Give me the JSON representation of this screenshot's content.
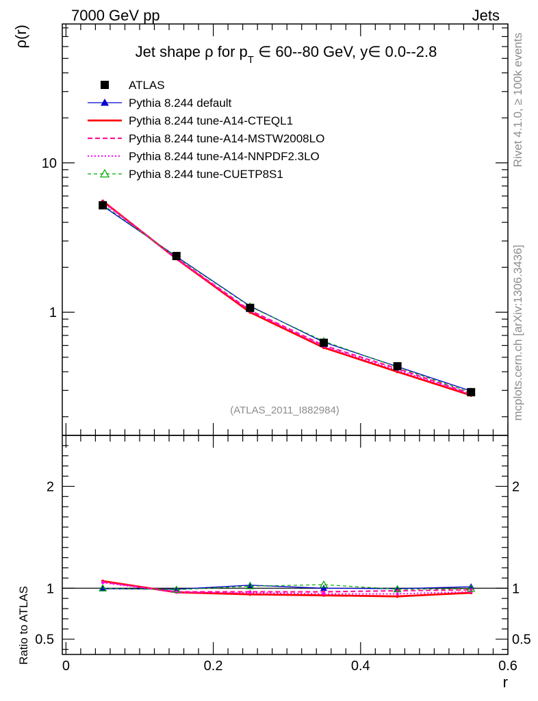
{
  "header": {
    "left": "7000 GeV pp",
    "right": "Jets"
  },
  "side_labels": {
    "rivet": "Rivet 4.1.0, ≥ 100k events",
    "mcplots": "mcplots.cern.ch [arXiv:1306.3436]"
  },
  "chart_data": {
    "type": "line",
    "title": {
      "pre": "Jet shape ρ for p",
      "sub": "T",
      "post": " ∈ 60--80 GeV, y∈ 0.0--2.8"
    },
    "watermark": "(ATLAS_2011_I882984)",
    "xlabel": "r",
    "ylabel_main": "ρ(r)",
    "ylabel_ratio": "Ratio to ATLAS",
    "xlim": [
      -0.005,
      0.6
    ],
    "ylim_main": [
      0.15,
      85
    ],
    "ylim_ratio": [
      0.35,
      2.5
    ],
    "x_ticks": [
      0,
      0.2,
      0.4,
      0.6
    ],
    "x_tick_labels": [
      "0",
      "0.2",
      "0.4",
      "0.6"
    ],
    "main_y_ticks": [
      1,
      10
    ],
    "main_y_tick_labels": [
      "1",
      "10"
    ],
    "ratio_y_ticks": [
      0.5,
      1,
      2
    ],
    "ratio_y_tick_labels": [
      "0.5",
      "1",
      "2"
    ],
    "ratio_y_tick_labels_right": [
      "0.5",
      "1",
      "2"
    ],
    "x": [
      0.05,
      0.15,
      0.25,
      0.35,
      0.45,
      0.55
    ],
    "series": [
      {
        "name": "ATLAS",
        "color": "#000000",
        "style": "data",
        "values": [
          5.2,
          2.38,
          1.07,
          0.625,
          0.435,
          0.292
        ],
        "ratio": [
          1,
          1,
          1,
          1,
          1,
          1
        ]
      },
      {
        "name": "Pythia 8.244 default",
        "color": "#0000cc",
        "style": "solid-triangle",
        "values": [
          5.15,
          2.36,
          1.1,
          0.63,
          0.433,
          0.297
        ],
        "ratio": [
          0.995,
          0.99,
          1.03,
          1.0,
          0.995,
          1.015
        ]
      },
      {
        "name": "Pythia 8.244 tune-A14-CTEQL1",
        "color": "#ff0000",
        "style": "solid-thick",
        "values": [
          5.55,
          2.28,
          1.0,
          0.58,
          0.4,
          0.278
        ],
        "ratio": [
          1.07,
          0.96,
          0.94,
          0.93,
          0.92,
          0.955
        ]
      },
      {
        "name": "Pythia 8.244 tune-A14-MSTW2008LO",
        "color": "#ff1493",
        "style": "dashed",
        "values": [
          5.5,
          2.3,
          1.03,
          0.6,
          0.42,
          0.285
        ],
        "ratio": [
          1.06,
          0.965,
          0.965,
          0.965,
          0.975,
          0.985
        ]
      },
      {
        "name": "Pythia 8.244 tune-A14-NNPDF2.3LO",
        "color": "#ff00ff",
        "style": "dotted",
        "values": [
          5.45,
          2.28,
          1.02,
          0.59,
          0.41,
          0.282
        ],
        "ratio": [
          1.055,
          0.96,
          0.955,
          0.945,
          0.945,
          0.965
        ]
      },
      {
        "name": "Pythia 8.244 tune-CUETP8S1",
        "color": "#00aa00",
        "style": "dashed-open-triangle",
        "values": [
          5.25,
          2.34,
          1.09,
          0.64,
          0.43,
          0.29
        ],
        "ratio": [
          1.0,
          0.985,
          1.02,
          1.035,
          0.99,
          0.995
        ]
      }
    ]
  }
}
